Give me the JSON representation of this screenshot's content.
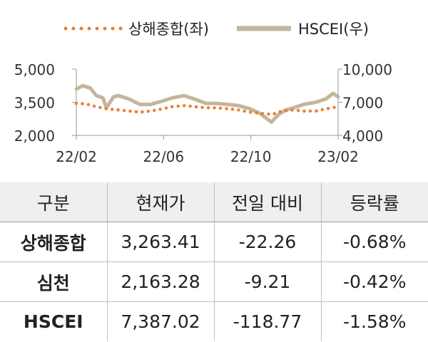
{
  "chart_data": {
    "type": "line",
    "legend_position": "top",
    "grid": false,
    "x_ticks": [
      "22/02",
      "22/06",
      "22/10",
      "23/02"
    ],
    "y_left": {
      "ylim": [
        2000,
        5000
      ],
      "ticks": [
        "5,000",
        "3,500",
        "2,000"
      ]
    },
    "y_right": {
      "ylim": [
        4000,
        10000
      ],
      "ticks": [
        "10,000",
        "7,000",
        "4,000"
      ]
    },
    "series": [
      {
        "name": "상해종합(좌)",
        "axis": "left",
        "style": "dotted",
        "color": "#ed7d31",
        "x": [
          "2022-02-01",
          "2022-02-15",
          "2022-03-01",
          "2022-03-15",
          "2022-04-01",
          "2022-04-15",
          "2022-05-01",
          "2022-05-15",
          "2022-06-01",
          "2022-06-15",
          "2022-07-01",
          "2022-07-15",
          "2022-08-01",
          "2022-08-15",
          "2022-09-01",
          "2022-09-15",
          "2022-10-01",
          "2022-10-15",
          "2022-11-01",
          "2022-11-15",
          "2022-12-01",
          "2022-12-15",
          "2023-01-01",
          "2023-01-15",
          "2023-02-01"
        ],
        "values": [
          3450,
          3420,
          3300,
          3200,
          3150,
          3100,
          3050,
          3100,
          3200,
          3300,
          3350,
          3300,
          3250,
          3250,
          3200,
          3150,
          3050,
          3000,
          2950,
          3100,
          3150,
          3100,
          3100,
          3200,
          3300
        ]
      },
      {
        "name": "HSCEI(우)",
        "axis": "right",
        "style": "solid",
        "color": "#c4b59a",
        "x": [
          "2022-02-01",
          "2022-02-10",
          "2022-02-20",
          "2022-03-01",
          "2022-03-10",
          "2022-03-15",
          "2022-03-25",
          "2022-04-01",
          "2022-04-15",
          "2022-05-01",
          "2022-05-15",
          "2022-06-01",
          "2022-06-15",
          "2022-07-01",
          "2022-07-15",
          "2022-08-01",
          "2022-08-15",
          "2022-09-01",
          "2022-09-15",
          "2022-10-01",
          "2022-10-15",
          "2022-10-31",
          "2022-11-10",
          "2022-11-20",
          "2022-12-01",
          "2022-12-15",
          "2023-01-01",
          "2023-01-15",
          "2023-01-25",
          "2023-02-01"
        ],
        "values": [
          8200,
          8500,
          8300,
          7600,
          7400,
          6500,
          7500,
          7600,
          7300,
          6800,
          6800,
          7100,
          7400,
          7600,
          7300,
          6900,
          6900,
          6800,
          6700,
          6400,
          6000,
          5200,
          5900,
          6300,
          6500,
          6800,
          7000,
          7300,
          7800,
          7500
        ]
      }
    ]
  },
  "table": {
    "headers": [
      "구분",
      "현재가",
      "전일 대비",
      "등락률"
    ],
    "rows": [
      {
        "name": "상해종합",
        "price": "3,263.41",
        "change": "-22.26",
        "rate": "-0.68%"
      },
      {
        "name": "심천",
        "price": "2,163.28",
        "change": "-9.21",
        "rate": "-0.42%"
      },
      {
        "name": "HSCEI",
        "price": "7,387.02",
        "change": "-118.77",
        "rate": "-1.58%"
      }
    ]
  }
}
